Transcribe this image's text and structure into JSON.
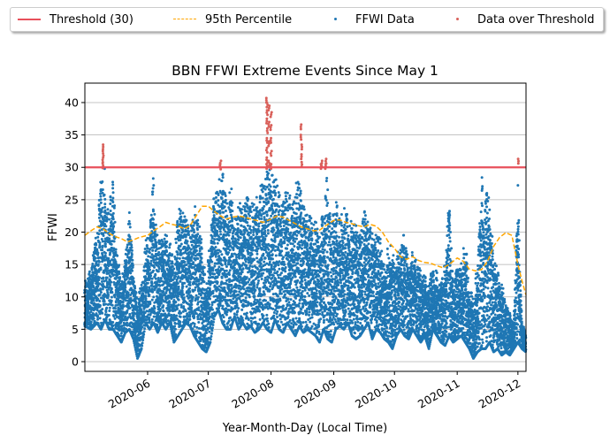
{
  "chart_data": {
    "type": "scatter",
    "title": "BBN FFWI Extreme Events Since May 1",
    "xlabel": "Year-Month-Day (Local Time)",
    "ylabel": "FFWI",
    "x_range": [
      "2020-05-01",
      "2020-12-05"
    ],
    "ylim": [
      -1.5,
      43
    ],
    "y_ticks": [
      0,
      5,
      10,
      15,
      20,
      25,
      30,
      35,
      40
    ],
    "x_ticks": [
      {
        "date": "2020-06-01",
        "label": "2020-06"
      },
      {
        "date": "2020-07-01",
        "label": "2020-07"
      },
      {
        "date": "2020-08-01",
        "label": "2020-08"
      },
      {
        "date": "2020-09-01",
        "label": "2020-09"
      },
      {
        "date": "2020-10-01",
        "label": "2020-10"
      },
      {
        "date": "2020-11-01",
        "label": "2020-11"
      },
      {
        "date": "2020-12-01",
        "label": "2020-12"
      }
    ],
    "grid": "horizontal",
    "legend_position": "top (above plot, 4 columns)",
    "threshold": {
      "name": "Threshold (30)",
      "value": 30,
      "color": "#e8505b"
    },
    "series": [
      {
        "name": "Threshold (30)",
        "type": "hline",
        "value": 30,
        "color": "#e8505b"
      },
      {
        "name": "95th Percentile",
        "type": "line",
        "style": "dashed",
        "color": "#ffa500",
        "points": [
          [
            "2020-05-01",
            19.5
          ],
          [
            "2020-05-04",
            20.2
          ],
          [
            "2020-05-07",
            20.8
          ],
          [
            "2020-05-10",
            20.5
          ],
          [
            "2020-05-13",
            19.8
          ],
          [
            "2020-05-16",
            19.3
          ],
          [
            "2020-05-19",
            19.0
          ],
          [
            "2020-05-22",
            18.5
          ],
          [
            "2020-05-25",
            18.8
          ],
          [
            "2020-05-28",
            19.2
          ],
          [
            "2020-06-01",
            19.5
          ],
          [
            "2020-06-04",
            20.2
          ],
          [
            "2020-06-07",
            20.8
          ],
          [
            "2020-06-10",
            21.5
          ],
          [
            "2020-06-13",
            21.2
          ],
          [
            "2020-06-16",
            21.0
          ],
          [
            "2020-06-19",
            20.5
          ],
          [
            "2020-06-22",
            21.0
          ],
          [
            "2020-06-25",
            22.5
          ],
          [
            "2020-06-28",
            24.0
          ],
          [
            "2020-07-01",
            24.0
          ],
          [
            "2020-07-04",
            23.2
          ],
          [
            "2020-07-07",
            22.5
          ],
          [
            "2020-07-10",
            22.0
          ],
          [
            "2020-07-13",
            22.3
          ],
          [
            "2020-07-16",
            22.5
          ],
          [
            "2020-07-19",
            22.3
          ],
          [
            "2020-07-22",
            22.0
          ],
          [
            "2020-07-25",
            21.8
          ],
          [
            "2020-07-28",
            21.5
          ],
          [
            "2020-08-01",
            22.0
          ],
          [
            "2020-08-04",
            22.5
          ],
          [
            "2020-08-07",
            22.3
          ],
          [
            "2020-08-10",
            21.8
          ],
          [
            "2020-08-13",
            21.3
          ],
          [
            "2020-08-16",
            20.8
          ],
          [
            "2020-08-19",
            20.5
          ],
          [
            "2020-08-22",
            20.2
          ],
          [
            "2020-08-25",
            20.3
          ],
          [
            "2020-08-28",
            21.0
          ],
          [
            "2020-09-01",
            21.8
          ],
          [
            "2020-09-04",
            21.9
          ],
          [
            "2020-09-07",
            21.5
          ],
          [
            "2020-09-10",
            21.3
          ],
          [
            "2020-09-13",
            21.0
          ],
          [
            "2020-09-16",
            20.8
          ],
          [
            "2020-09-19",
            21.2
          ],
          [
            "2020-09-22",
            20.9
          ],
          [
            "2020-09-25",
            20.0
          ],
          [
            "2020-09-28",
            18.5
          ],
          [
            "2020-10-01",
            17.5
          ],
          [
            "2020-10-04",
            16.2
          ],
          [
            "2020-10-07",
            15.8
          ],
          [
            "2020-10-10",
            16.2
          ],
          [
            "2020-10-13",
            15.6
          ],
          [
            "2020-10-16",
            15.3
          ],
          [
            "2020-10-19",
            15.2
          ],
          [
            "2020-10-22",
            14.8
          ],
          [
            "2020-10-25",
            14.5
          ],
          [
            "2020-10-28",
            15.0
          ],
          [
            "2020-11-01",
            16.0
          ],
          [
            "2020-11-04",
            15.5
          ],
          [
            "2020-11-07",
            14.3
          ],
          [
            "2020-11-10",
            14.0
          ],
          [
            "2020-11-13",
            14.2
          ],
          [
            "2020-11-16",
            15.5
          ],
          [
            "2020-11-19",
            17.8
          ],
          [
            "2020-11-22",
            19.2
          ],
          [
            "2020-11-25",
            19.9
          ],
          [
            "2020-11-28",
            19.5
          ],
          [
            "2020-12-01",
            15.0
          ],
          [
            "2020-12-03",
            12.5
          ],
          [
            "2020-12-05",
            10.3
          ]
        ]
      },
      {
        "name": "FFWI Data",
        "type": "scatter",
        "color": "#1f77b4",
        "daily_range": [
          [
            "2020-05-01",
            5.5,
            12.5
          ],
          [
            "2020-05-04",
            5.0,
            14.5
          ],
          [
            "2020-05-07",
            6.0,
            20.5
          ],
          [
            "2020-05-09",
            5.0,
            29.0
          ],
          [
            "2020-05-11",
            6.5,
            30.0
          ],
          [
            "2020-05-13",
            5.0,
            24.0
          ],
          [
            "2020-05-15",
            5.0,
            28.5
          ],
          [
            "2020-05-17",
            4.0,
            17.0
          ],
          [
            "2020-05-19",
            3.0,
            12.5
          ],
          [
            "2020-05-21",
            4.5,
            16.0
          ],
          [
            "2020-05-23",
            5.0,
            24.5
          ],
          [
            "2020-05-25",
            3.5,
            14.0
          ],
          [
            "2020-05-27",
            0.5,
            10.0
          ],
          [
            "2020-05-29",
            2.0,
            12.0
          ],
          [
            "2020-05-31",
            6.0,
            19.0
          ],
          [
            "2020-06-02",
            5.0,
            20.0
          ],
          [
            "2020-06-04",
            6.0,
            30.0
          ],
          [
            "2020-06-06",
            4.5,
            18.5
          ],
          [
            "2020-06-08",
            6.0,
            21.0
          ],
          [
            "2020-06-10",
            5.0,
            19.5
          ],
          [
            "2020-06-12",
            6.0,
            20.0
          ],
          [
            "2020-06-14",
            3.0,
            15.0
          ],
          [
            "2020-06-16",
            4.0,
            24.0
          ],
          [
            "2020-06-18",
            5.0,
            24.5
          ],
          [
            "2020-06-20",
            6.0,
            22.0
          ],
          [
            "2020-06-22",
            5.5,
            20.5
          ],
          [
            "2020-06-24",
            4.0,
            24.5
          ],
          [
            "2020-06-26",
            3.0,
            23.0
          ],
          [
            "2020-06-28",
            2.0,
            18.0
          ],
          [
            "2020-06-30",
            1.5,
            12.0
          ],
          [
            "2020-07-02",
            3.0,
            21.0
          ],
          [
            "2020-07-04",
            7.0,
            26.0
          ],
          [
            "2020-07-06",
            8.0,
            29.0
          ],
          [
            "2020-07-08",
            6.0,
            30.0
          ],
          [
            "2020-07-10",
            5.0,
            25.5
          ],
          [
            "2020-07-12",
            5.0,
            28.5
          ],
          [
            "2020-07-14",
            7.0,
            22.0
          ],
          [
            "2020-07-16",
            5.0,
            26.5
          ],
          [
            "2020-07-18",
            6.0,
            24.0
          ],
          [
            "2020-07-20",
            5.0,
            25.5
          ],
          [
            "2020-07-22",
            5.5,
            24.5
          ],
          [
            "2020-07-24",
            4.5,
            26.0
          ],
          [
            "2020-07-26",
            5.0,
            27.0
          ],
          [
            "2020-07-28",
            6.0,
            29.0
          ],
          [
            "2020-07-30",
            5.0,
            29.5
          ],
          [
            "2020-08-01",
            4.5,
            30.0
          ],
          [
            "2020-08-03",
            6.5,
            29.0
          ],
          [
            "2020-08-05",
            5.0,
            27.5
          ],
          [
            "2020-08-07",
            4.5,
            25.5
          ],
          [
            "2020-08-09",
            6.0,
            27.5
          ],
          [
            "2020-08-11",
            5.0,
            25.0
          ],
          [
            "2020-08-13",
            4.0,
            27.0
          ],
          [
            "2020-08-15",
            5.5,
            30.0
          ],
          [
            "2020-08-17",
            4.5,
            24.0
          ],
          [
            "2020-08-19",
            5.0,
            23.5
          ],
          [
            "2020-08-21",
            4.5,
            22.0
          ],
          [
            "2020-08-23",
            4.0,
            23.0
          ],
          [
            "2020-08-25",
            3.0,
            21.5
          ],
          [
            "2020-08-27",
            5.0,
            23.0
          ],
          [
            "2020-08-29",
            3.5,
            30.0
          ],
          [
            "2020-08-31",
            3.0,
            22.0
          ],
          [
            "2020-09-02",
            5.0,
            25.0
          ],
          [
            "2020-09-04",
            5.5,
            22.5
          ],
          [
            "2020-09-06",
            5.0,
            24.0
          ],
          [
            "2020-09-08",
            6.0,
            22.5
          ],
          [
            "2020-09-10",
            4.0,
            22.0
          ],
          [
            "2020-09-12",
            3.5,
            21.5
          ],
          [
            "2020-09-14",
            4.0,
            21.0
          ],
          [
            "2020-09-16",
            5.0,
            23.5
          ],
          [
            "2020-09-18",
            6.0,
            21.5
          ],
          [
            "2020-09-20",
            3.5,
            20.0
          ],
          [
            "2020-09-22",
            5.0,
            21.0
          ],
          [
            "2020-09-24",
            4.5,
            19.5
          ],
          [
            "2020-09-26",
            3.5,
            15.0
          ],
          [
            "2020-09-28",
            3.0,
            20.0
          ],
          [
            "2020-09-30",
            2.0,
            16.5
          ],
          [
            "2020-10-02",
            4.0,
            17.0
          ],
          [
            "2020-10-04",
            5.0,
            19.5
          ],
          [
            "2020-10-06",
            4.0,
            20.5
          ],
          [
            "2020-10-08",
            3.5,
            16.0
          ],
          [
            "2020-10-10",
            5.0,
            17.0
          ],
          [
            "2020-10-12",
            4.0,
            15.5
          ],
          [
            "2020-10-14",
            3.0,
            14.0
          ],
          [
            "2020-10-16",
            4.0,
            13.5
          ],
          [
            "2020-10-18",
            2.0,
            12.0
          ],
          [
            "2020-10-20",
            5.0,
            15.0
          ],
          [
            "2020-10-22",
            4.0,
            14.0
          ],
          [
            "2020-10-24",
            3.0,
            12.0
          ],
          [
            "2020-10-26",
            2.5,
            15.5
          ],
          [
            "2020-10-28",
            4.0,
            25.5
          ],
          [
            "2020-10-30",
            3.0,
            12.0
          ],
          [
            "2020-11-01",
            3.5,
            15.0
          ],
          [
            "2020-11-03",
            4.0,
            16.0
          ],
          [
            "2020-11-05",
            3.0,
            19.0
          ],
          [
            "2020-11-07",
            2.0,
            12.0
          ],
          [
            "2020-11-09",
            0.5,
            10.0
          ],
          [
            "2020-11-11",
            1.5,
            15.5
          ],
          [
            "2020-11-13",
            2.0,
            29.0
          ],
          [
            "2020-11-15",
            2.0,
            26.0
          ],
          [
            "2020-11-17",
            3.0,
            27.0
          ],
          [
            "2020-11-19",
            1.5,
            17.0
          ],
          [
            "2020-11-21",
            2.0,
            14.0
          ],
          [
            "2020-11-23",
            1.0,
            12.0
          ],
          [
            "2020-11-25",
            1.5,
            10.0
          ],
          [
            "2020-11-27",
            1.0,
            8.0
          ],
          [
            "2020-11-29",
            2.0,
            6.0
          ],
          [
            "2020-12-01",
            3.0,
            27.5
          ],
          [
            "2020-12-03",
            2.0,
            6.5
          ],
          [
            "2020-12-05",
            1.5,
            4.0
          ]
        ]
      },
      {
        "name": "Data over Threshold",
        "type": "scatter",
        "color": "#d9605a",
        "points": [
          [
            "2020-05-10",
            33.5
          ],
          [
            "2020-05-10",
            32.5
          ],
          [
            "2020-05-10",
            31.5
          ],
          [
            "2020-05-10",
            30.6
          ],
          [
            "2020-07-07",
            31.0
          ],
          [
            "2020-07-07",
            30.4
          ],
          [
            "2020-07-30",
            40.7
          ],
          [
            "2020-07-30",
            40.0
          ],
          [
            "2020-07-30",
            38.8
          ],
          [
            "2020-07-30",
            37.5
          ],
          [
            "2020-07-30",
            36.0
          ],
          [
            "2020-07-30",
            34.5
          ],
          [
            "2020-07-30",
            33.0
          ],
          [
            "2020-07-30",
            31.5
          ],
          [
            "2020-07-30",
            30.5
          ],
          [
            "2020-07-31",
            39.5
          ],
          [
            "2020-07-31",
            37.0
          ],
          [
            "2020-07-31",
            34.0
          ],
          [
            "2020-07-31",
            31.0
          ],
          [
            "2020-08-01",
            38.5
          ],
          [
            "2020-08-01",
            36.5
          ],
          [
            "2020-08-01",
            34.5
          ],
          [
            "2020-08-01",
            32.5
          ],
          [
            "2020-08-01",
            30.5
          ],
          [
            "2020-08-16",
            36.6
          ],
          [
            "2020-08-16",
            35.0
          ],
          [
            "2020-08-16",
            33.5
          ],
          [
            "2020-08-16",
            32.0
          ],
          [
            "2020-08-16",
            30.8
          ],
          [
            "2020-08-26",
            31.0
          ],
          [
            "2020-08-26",
            30.5
          ],
          [
            "2020-08-28",
            31.3
          ],
          [
            "2020-08-28",
            30.5
          ],
          [
            "2020-12-01",
            31.3
          ]
        ]
      }
    ]
  }
}
